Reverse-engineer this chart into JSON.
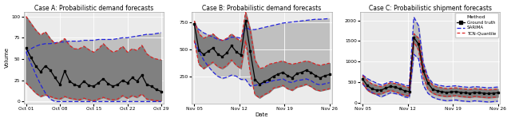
{
  "title_A": "Case A: Probabilistic demand forecasts",
  "title_B": "Case B: Probabilistic demand forecasts",
  "title_C": "Case C: Probabilistic shipment forecasts",
  "xlabel": "Date",
  "ylabel": "Volume",
  "legend_title": "Method",
  "legend_entries": [
    "Ground truth",
    "SARIMA",
    "TCN-Quantile"
  ],
  "bg_color": "#ebebeb",
  "ground_truth_color": "#000000",
  "sarima_color": "#2222dd",
  "tcn_color": "#dd2222",
  "fill_dark": "#808080",
  "fill_light": "#c0c0c0",
  "xticksA": [
    "Oct 01",
    "Oct 08",
    "Oct 15",
    "Oct 22",
    "Oct 29"
  ],
  "xticksB": [
    "Nov 05",
    "Nov 12",
    "Nov 19",
    "Nov 26"
  ],
  "xticksC": [
    "Nov 05",
    "Nov 12",
    "Nov 19",
    "Nov 26"
  ],
  "A_n": 29,
  "A_gt": [
    63,
    52,
    42,
    35,
    42,
    37,
    28,
    20,
    36,
    24,
    20,
    18,
    24,
    19,
    18,
    22,
    27,
    21,
    18,
    20,
    25,
    22,
    28,
    24,
    31,
    20,
    18,
    14,
    12
  ],
  "A_tcn_upper": [
    100,
    92,
    84,
    78,
    82,
    74,
    68,
    70,
    74,
    66,
    62,
    62,
    65,
    61,
    58,
    62,
    68,
    62,
    58,
    60,
    65,
    58,
    62,
    60,
    66,
    56,
    52,
    50,
    49
  ],
  "A_tcn_lower": [
    22,
    16,
    10,
    6,
    8,
    6,
    4,
    3,
    6,
    4,
    3,
    2,
    4,
    2,
    1,
    3,
    5,
    3,
    2,
    3,
    7,
    4,
    7,
    5,
    9,
    3,
    2,
    1,
    1
  ],
  "A_sarima_upper": [
    58,
    62,
    65,
    67,
    68,
    68,
    69,
    70,
    70,
    71,
    71,
    71,
    72,
    72,
    72,
    73,
    73,
    73,
    73,
    74,
    75,
    75,
    76,
    77,
    78,
    79,
    79,
    80,
    81
  ],
  "A_sarima_lower": [
    58,
    45,
    32,
    20,
    10,
    3,
    0,
    0,
    0,
    0,
    0,
    0,
    0,
    0,
    0,
    0,
    0,
    0,
    0,
    0,
    0,
    0,
    0,
    0,
    0,
    0,
    0,
    0,
    0
  ],
  "B_n": 30,
  "B_gt": [
    730,
    490,
    450,
    480,
    510,
    455,
    430,
    465,
    530,
    475,
    445,
    760,
    480,
    220,
    175,
    200,
    220,
    250,
    270,
    285,
    255,
    235,
    275,
    285,
    305,
    285,
    255,
    235,
    255,
    265
  ],
  "B_tcn_upper": [
    760,
    640,
    600,
    620,
    640,
    600,
    580,
    600,
    640,
    600,
    570,
    840,
    680,
    400,
    320,
    330,
    360,
    370,
    380,
    390,
    370,
    360,
    370,
    380,
    390,
    380,
    360,
    350,
    360,
    370
  ],
  "B_tcn_lower": [
    580,
    360,
    320,
    350,
    380,
    340,
    320,
    350,
    400,
    350,
    320,
    580,
    280,
    80,
    50,
    80,
    100,
    140,
    150,
    165,
    135,
    120,
    150,
    160,
    175,
    155,
    125,
    115,
    125,
    135
  ],
  "B_sarima_upper": [
    730,
    680,
    650,
    630,
    610,
    590,
    580,
    590,
    610,
    610,
    600,
    700,
    680,
    680,
    690,
    700,
    710,
    720,
    730,
    740,
    745,
    750,
    755,
    760,
    765,
    770,
    775,
    775,
    778,
    782
  ],
  "B_sarima_lower": [
    570,
    480,
    400,
    340,
    290,
    250,
    230,
    240,
    260,
    250,
    220,
    220,
    160,
    165,
    175,
    185,
    195,
    210,
    215,
    225,
    200,
    190,
    210,
    215,
    225,
    210,
    180,
    170,
    180,
    190
  ],
  "C_n": 30,
  "C_gt": [
    580,
    420,
    340,
    310,
    310,
    360,
    400,
    380,
    340,
    295,
    275,
    1580,
    1430,
    780,
    480,
    330,
    295,
    270,
    255,
    265,
    275,
    255,
    245,
    235,
    255,
    245,
    235,
    225,
    235,
    245
  ],
  "C_tcn_upper": [
    660,
    540,
    460,
    420,
    390,
    440,
    490,
    470,
    440,
    395,
    370,
    1680,
    1570,
    880,
    575,
    430,
    385,
    365,
    345,
    355,
    365,
    345,
    335,
    325,
    345,
    335,
    325,
    315,
    325,
    335
  ],
  "C_tcn_lower": [
    490,
    310,
    240,
    210,
    220,
    270,
    300,
    270,
    230,
    185,
    165,
    1480,
    1280,
    630,
    335,
    235,
    190,
    170,
    155,
    165,
    175,
    155,
    145,
    135,
    155,
    145,
    135,
    125,
    135,
    145
  ],
  "C_sarima_upper": [
    680,
    590,
    530,
    480,
    430,
    475,
    515,
    500,
    475,
    430,
    410,
    2080,
    1870,
    980,
    630,
    480,
    435,
    415,
    395,
    405,
    415,
    395,
    385,
    375,
    395,
    385,
    375,
    365,
    375,
    385
  ],
  "C_sarima_lower": [
    460,
    330,
    255,
    200,
    145,
    195,
    245,
    225,
    200,
    145,
    125,
    1180,
    1070,
    430,
    235,
    140,
    95,
    70,
    50,
    60,
    70,
    50,
    40,
    30,
    50,
    40,
    30,
    20,
    30,
    40
  ]
}
